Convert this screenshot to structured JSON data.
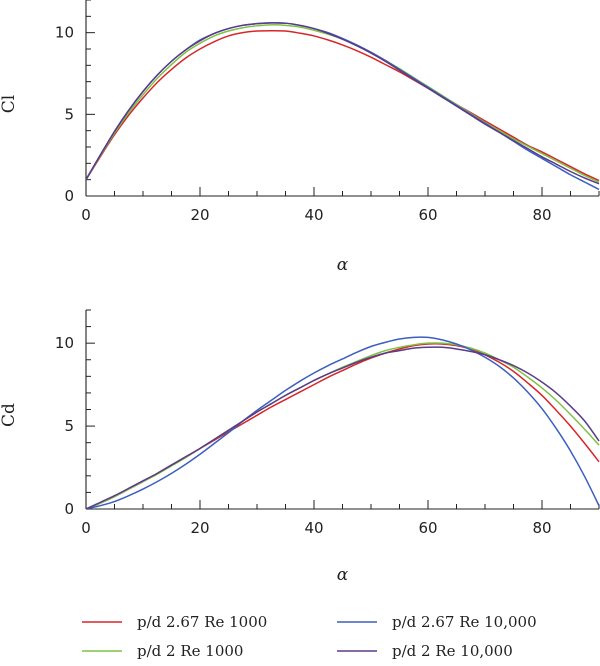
{
  "chart_data": [
    {
      "type": "line",
      "ylabel": "Cl",
      "xlabel": "α",
      "xlim": [
        0,
        90
      ],
      "ylim": [
        0,
        12
      ],
      "xticks": [
        0,
        20,
        40,
        60,
        80
      ],
      "yticks": [
        0,
        5,
        10
      ],
      "yminor_step": 1,
      "xminor_step": 5,
      "series": [
        {
          "name": "p/d 2.67 Re 1000",
          "color": "#d62728",
          "x": [
            0,
            2.5,
            5,
            7.5,
            10,
            12.5,
            15,
            17.5,
            20,
            22.5,
            25,
            27.5,
            30,
            32.5,
            35,
            37.5,
            40,
            42.5,
            45,
            47.5,
            50,
            52.5,
            55,
            57.5,
            60,
            62.5,
            65,
            67.5,
            70,
            72.5,
            75,
            77.5,
            80,
            82.5,
            85,
            87.5,
            90
          ],
          "y": [
            1.0,
            2.4,
            3.75,
            4.95,
            6.0,
            6.95,
            7.75,
            8.45,
            9.0,
            9.45,
            9.8,
            10.0,
            10.1,
            10.12,
            10.1,
            9.97,
            9.8,
            9.55,
            9.25,
            8.9,
            8.5,
            8.05,
            7.6,
            7.1,
            6.6,
            6.1,
            5.6,
            5.1,
            4.6,
            4.1,
            3.6,
            3.1,
            2.7,
            2.25,
            1.8,
            1.35,
            0.95
          ]
        },
        {
          "name": "p/d 2 Re 1000",
          "color": "#7dc242",
          "x": [
            0,
            2.5,
            5,
            7.5,
            10,
            12.5,
            15,
            17.5,
            20,
            22.5,
            25,
            27.5,
            30,
            32.5,
            35,
            37.5,
            40,
            42.5,
            45,
            47.5,
            50,
            52.5,
            55,
            57.5,
            60,
            62.5,
            65,
            67.5,
            70,
            72.5,
            75,
            77.5,
            80,
            82.5,
            85,
            87.5,
            90
          ],
          "y": [
            1.0,
            2.45,
            3.85,
            5.1,
            6.2,
            7.2,
            8.05,
            8.8,
            9.35,
            9.8,
            10.1,
            10.3,
            10.42,
            10.48,
            10.45,
            10.35,
            10.15,
            9.9,
            9.6,
            9.2,
            8.8,
            8.3,
            7.8,
            7.25,
            6.7,
            6.15,
            5.6,
            5.05,
            4.5,
            4.0,
            3.5,
            3.05,
            2.6,
            2.15,
            1.7,
            1.25,
            0.85
          ]
        },
        {
          "name": "p/d 2.67 Re 10,000",
          "color": "#3b5fc0",
          "x": [
            0,
            2.5,
            5,
            7.5,
            10,
            12.5,
            15,
            17.5,
            20,
            22.5,
            25,
            27.5,
            30,
            32.5,
            35,
            37.5,
            40,
            42.5,
            45,
            47.5,
            50,
            52.5,
            55,
            57.5,
            60,
            62.5,
            65,
            67.5,
            70,
            72.5,
            75,
            77.5,
            80,
            82.5,
            85,
            87.5,
            90
          ],
          "y": [
            1.0,
            2.5,
            3.95,
            5.25,
            6.4,
            7.4,
            8.25,
            8.95,
            9.55,
            9.95,
            10.25,
            10.45,
            10.55,
            10.6,
            10.58,
            10.45,
            10.25,
            10.0,
            9.65,
            9.25,
            8.8,
            8.3,
            7.75,
            7.2,
            6.65,
            6.1,
            5.55,
            5.0,
            4.45,
            3.9,
            3.35,
            2.8,
            2.3,
            1.8,
            1.3,
            0.85,
            0.4
          ]
        },
        {
          "name": "p/d 2 Re 10,000",
          "color": "#5a3a8c",
          "x": [
            0,
            2.5,
            5,
            7.5,
            10,
            12.5,
            15,
            17.5,
            20,
            22.5,
            25,
            27.5,
            30,
            32.5,
            35,
            37.5,
            40,
            42.5,
            45,
            47.5,
            50,
            52.5,
            55,
            57.5,
            60,
            62.5,
            65,
            67.5,
            70,
            72.5,
            75,
            77.5,
            80,
            82.5,
            85,
            87.5,
            90
          ],
          "y": [
            1.0,
            2.5,
            3.95,
            5.25,
            6.4,
            7.4,
            8.25,
            8.95,
            9.5,
            9.95,
            10.25,
            10.45,
            10.55,
            10.6,
            10.58,
            10.45,
            10.25,
            9.95,
            9.6,
            9.2,
            8.75,
            8.25,
            7.7,
            7.15,
            6.6,
            6.05,
            5.5,
            4.95,
            4.4,
            3.9,
            3.4,
            2.9,
            2.4,
            1.95,
            1.5,
            1.1,
            0.75
          ]
        }
      ]
    },
    {
      "type": "line",
      "ylabel": "Cd",
      "xlabel": "α",
      "xlim": [
        0,
        90
      ],
      "ylim": [
        0,
        12
      ],
      "xticks": [
        0,
        20,
        40,
        60,
        80
      ],
      "yticks": [
        0,
        5,
        10
      ],
      "yminor_step": 1,
      "xminor_step": 5,
      "series": [
        {
          "name": "p/d 2.67 Re 1000",
          "color": "#d62728",
          "x": [
            0,
            2.5,
            5,
            7.5,
            10,
            12.5,
            15,
            17.5,
            20,
            22.5,
            25,
            27.5,
            30,
            32.5,
            35,
            37.5,
            40,
            42.5,
            45,
            47.5,
            50,
            52.5,
            55,
            57.5,
            60,
            62.5,
            65,
            67.5,
            70,
            72.5,
            75,
            77.5,
            80,
            82.5,
            85,
            87.5,
            90
          ],
          "y": [
            0.0,
            0.35,
            0.75,
            1.2,
            1.65,
            2.15,
            2.65,
            3.15,
            3.65,
            4.15,
            4.65,
            5.15,
            5.65,
            6.15,
            6.6,
            7.05,
            7.5,
            7.95,
            8.35,
            8.75,
            9.1,
            9.4,
            9.65,
            9.85,
            9.95,
            9.95,
            9.85,
            9.65,
            9.3,
            8.85,
            8.3,
            7.6,
            6.85,
            5.95,
            5.0,
            3.95,
            2.85
          ]
        },
        {
          "name": "p/d 2 Re 1000",
          "color": "#7dc242",
          "x": [
            0,
            2.5,
            5,
            7.5,
            10,
            12.5,
            15,
            17.5,
            20,
            22.5,
            25,
            27.5,
            30,
            32.5,
            35,
            37.5,
            40,
            42.5,
            45,
            47.5,
            50,
            52.5,
            55,
            57.5,
            60,
            62.5,
            65,
            67.5,
            70,
            72.5,
            75,
            77.5,
            80,
            82.5,
            85,
            87.5,
            90
          ],
          "y": [
            0.0,
            0.35,
            0.75,
            1.2,
            1.65,
            2.1,
            2.6,
            3.1,
            3.65,
            4.2,
            4.75,
            5.3,
            5.85,
            6.35,
            6.85,
            7.3,
            7.75,
            8.15,
            8.55,
            8.9,
            9.25,
            9.55,
            9.75,
            9.9,
            10.0,
            10.0,
            9.9,
            9.7,
            9.4,
            9.0,
            8.55,
            7.95,
            7.3,
            6.55,
            5.7,
            4.8,
            3.85
          ]
        },
        {
          "name": "p/d 2.67 Re 10,000",
          "color": "#3b5fc0",
          "x": [
            0,
            2.5,
            5,
            7.5,
            10,
            12.5,
            15,
            17.5,
            20,
            22.5,
            25,
            27.5,
            30,
            32.5,
            35,
            37.5,
            40,
            42.5,
            45,
            47.5,
            50,
            52.5,
            55,
            57.5,
            60,
            62.5,
            65,
            67.5,
            70,
            72.5,
            75,
            77.5,
            80,
            82.5,
            85,
            87.5,
            90
          ],
          "y": [
            0.0,
            0.2,
            0.45,
            0.8,
            1.2,
            1.65,
            2.15,
            2.7,
            3.3,
            3.95,
            4.6,
            5.3,
            5.95,
            6.55,
            7.15,
            7.7,
            8.2,
            8.65,
            9.05,
            9.45,
            9.8,
            10.05,
            10.25,
            10.35,
            10.35,
            10.2,
            9.95,
            9.6,
            9.15,
            8.6,
            7.9,
            7.05,
            6.05,
            4.85,
            3.5,
            1.95,
            0.2
          ]
        },
        {
          "name": "p/d 2 Re 10,000",
          "color": "#5a3a8c",
          "x": [
            0,
            2.5,
            5,
            7.5,
            10,
            12.5,
            15,
            17.5,
            20,
            22.5,
            25,
            27.5,
            30,
            32.5,
            35,
            37.5,
            40,
            42.5,
            45,
            47.5,
            50,
            52.5,
            55,
            57.5,
            60,
            62.5,
            65,
            67.5,
            70,
            72.5,
            75,
            77.5,
            80,
            82.5,
            85,
            87.5,
            90
          ],
          "y": [
            0.0,
            0.4,
            0.8,
            1.25,
            1.7,
            2.15,
            2.65,
            3.15,
            3.65,
            4.2,
            4.75,
            5.3,
            5.85,
            6.35,
            6.85,
            7.3,
            7.75,
            8.15,
            8.5,
            8.85,
            9.15,
            9.4,
            9.55,
            9.7,
            9.75,
            9.75,
            9.65,
            9.5,
            9.3,
            9.0,
            8.65,
            8.2,
            7.65,
            7.0,
            6.2,
            5.3,
            4.1
          ]
        }
      ]
    }
  ],
  "legend": {
    "position": "bottom",
    "items": [
      {
        "label": "p/d 2.67 Re 1000",
        "color": "#d62728"
      },
      {
        "label": "p/d 2.67 Re 10,000",
        "color": "#3b5fc0"
      },
      {
        "label": "p/d 2 Re 1000",
        "color": "#7dc242"
      },
      {
        "label": "p/d 2 Re 10,000",
        "color": "#5a3a8c"
      }
    ]
  }
}
